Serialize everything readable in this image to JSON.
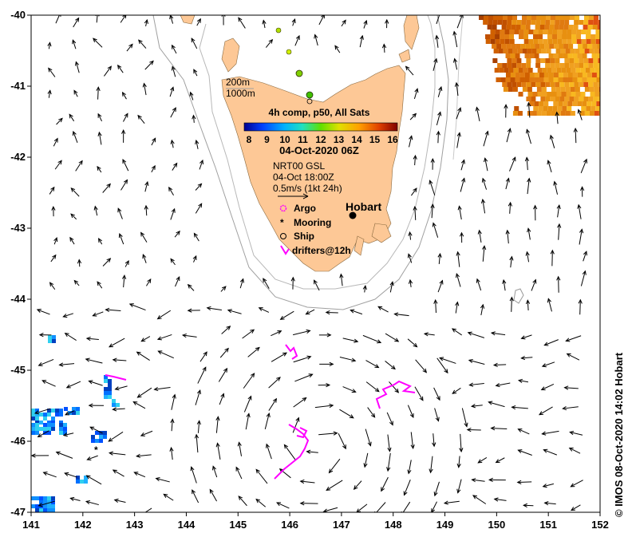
{
  "map": {
    "lon_range": [
      141,
      152
    ],
    "lat_range": [
      -47,
      -40
    ],
    "lon_ticks": [
      "141",
      "142",
      "143",
      "144",
      "145",
      "146",
      "147",
      "148",
      "149",
      "150",
      "151",
      "152"
    ],
    "lat_ticks": [
      "-40",
      "-41",
      "-42",
      "-43",
      "-44",
      "-45",
      "-46",
      "-47"
    ],
    "land_color": "#fdc896",
    "land_name": "Tasmania"
  },
  "bathymetry": {
    "label_200": "200m",
    "label_1000": "1000m"
  },
  "colorbar": {
    "title": "4h comp, p50, All Sats",
    "ticks": [
      "8",
      "9",
      "10",
      "11",
      "12",
      "13",
      "14",
      "15",
      "16"
    ],
    "date": "04-Oct-2020 06Z"
  },
  "currents": {
    "line1": "NRT00 GSL",
    "line2": "04-Oct 18:00Z",
    "line3": "0.5m/s (1kt 24h)"
  },
  "city": {
    "name": "Hobart"
  },
  "legend": {
    "argo": "Argo",
    "mooring": "Mooring",
    "ship": "Ship",
    "drifters": "drifters@12h",
    "argo_color": "#ff00ff",
    "drifter_color": "#ff00ff"
  },
  "credit": "© IMOS 08-Oct-2020 14:02 Hobart"
}
